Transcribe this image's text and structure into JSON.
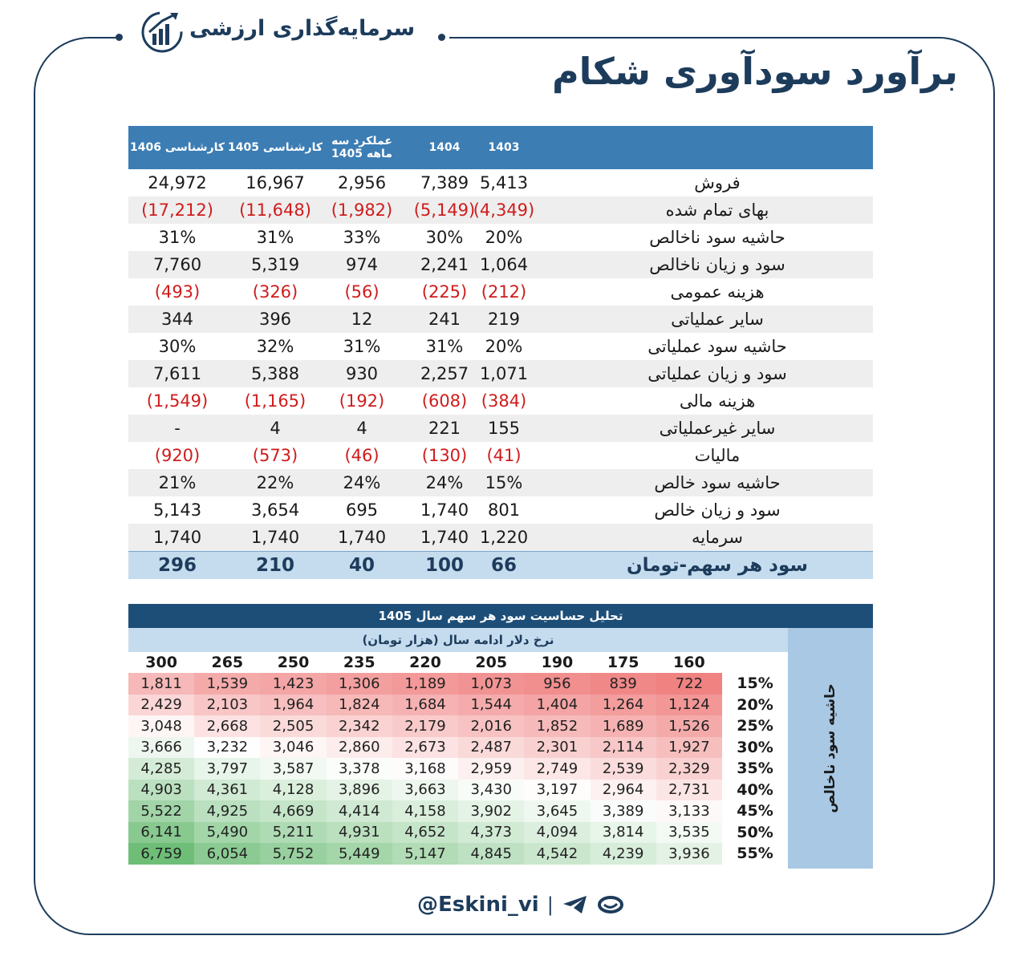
{
  "brand": {
    "name": "سرمایه‌گذاری ارزشی",
    "logo_icon": "chart-growth-logo-icon"
  },
  "title": "برآورد سودآوری شکام",
  "table": {
    "headers": [
      "1403",
      "1404",
      "عملکرد سه ماهه 1405",
      "کارشناسی 1405",
      "کارشناسی 1406"
    ],
    "rows": [
      {
        "label": "فروش",
        "values": [
          "5,413",
          "7,389",
          "2,956",
          "16,967",
          "24,972"
        ],
        "neg": false
      },
      {
        "label": "بهای تمام شده",
        "values": [
          "(4,349)",
          "(5,149)",
          "(1,982)",
          "(11,648)",
          "(17,212)"
        ],
        "neg": true
      },
      {
        "label": "حاشیه سود ناخالص",
        "values": [
          "20%",
          "30%",
          "33%",
          "31%",
          "31%"
        ],
        "neg": false
      },
      {
        "label": "سود و زیان ناخالص",
        "values": [
          "1,064",
          "2,241",
          "974",
          "5,319",
          "7,760"
        ],
        "neg": false
      },
      {
        "label": "هزینه عمومی",
        "values": [
          "(212)",
          "(225)",
          "(56)",
          "(326)",
          "(493)"
        ],
        "neg": true
      },
      {
        "label": "سایر  عملیاتی",
        "values": [
          "219",
          "241",
          "12",
          "396",
          "344"
        ],
        "neg": false
      },
      {
        "label": "حاشیه سود عملیاتی",
        "values": [
          "20%",
          "31%",
          "31%",
          "32%",
          "30%"
        ],
        "neg": false
      },
      {
        "label": "سود و زیان عملیاتی",
        "values": [
          "1,071",
          "2,257",
          "930",
          "5,388",
          "7,611"
        ],
        "neg": false
      },
      {
        "label": "هزینه مالی",
        "values": [
          "(384)",
          "(608)",
          "(192)",
          "(1,165)",
          "(1,549)"
        ],
        "neg": true
      },
      {
        "label": "سایر غیرعملیاتی",
        "values": [
          "155",
          "221",
          "4",
          "4",
          "-"
        ],
        "neg": false
      },
      {
        "label": "مالیات",
        "values": [
          "(41)",
          "(130)",
          "(46)",
          "(573)",
          "(920)"
        ],
        "neg": true
      },
      {
        "label": "حاشیه سود خالص",
        "values": [
          "15%",
          "24%",
          "24%",
          "22%",
          "21%"
        ],
        "neg": false
      },
      {
        "label": "سود و زیان خالص",
        "values": [
          "801",
          "1,740",
          "695",
          "3,654",
          "5,143"
        ],
        "neg": false
      },
      {
        "label": "سرمایه",
        "values": [
          "1,220",
          "1,740",
          "1,740",
          "1,740",
          "1,740"
        ],
        "neg": false
      }
    ],
    "eps": {
      "label": "سود هر سهم-تومان",
      "values": [
        "66",
        "100",
        "40",
        "210",
        "296"
      ]
    }
  },
  "sensitivity": {
    "title": "تحلیل حساسیت سود هر سهم سال 1405",
    "col_axis_label": "نرخ دلار ادامه سال (هزار تومان)",
    "row_axis_label": "حاشیه سود ناخالص",
    "cols": [
      "160",
      "175",
      "190",
      "205",
      "220",
      "235",
      "250",
      "265",
      "300"
    ],
    "rows": [
      "15%",
      "20%",
      "25%",
      "30%",
      "35%",
      "40%",
      "45%",
      "50%",
      "55%"
    ],
    "values": [
      [
        "722",
        "839",
        "956",
        "1,073",
        "1,189",
        "1,306",
        "1,423",
        "1,539",
        "1,811"
      ],
      [
        "1,124",
        "1,264",
        "1,404",
        "1,544",
        "1,684",
        "1,824",
        "1,964",
        "2,103",
        "2,429"
      ],
      [
        "1,526",
        "1,689",
        "1,852",
        "2,016",
        "2,179",
        "2,342",
        "2,505",
        "2,668",
        "3,048"
      ],
      [
        "1,927",
        "2,114",
        "2,301",
        "2,487",
        "2,673",
        "2,860",
        "3,046",
        "3,232",
        "3,666"
      ],
      [
        "2,329",
        "2,539",
        "2,749",
        "2,959",
        "3,168",
        "3,378",
        "3,587",
        "3,797",
        "4,285"
      ],
      [
        "2,731",
        "2,964",
        "3,197",
        "3,430",
        "3,663",
        "3,896",
        "4,128",
        "4,361",
        "4,903"
      ],
      [
        "3,133",
        "3,389",
        "3,645",
        "3,902",
        "4,158",
        "4,414",
        "4,669",
        "4,925",
        "5,522"
      ],
      [
        "3,535",
        "3,814",
        "4,094",
        "4,373",
        "4,652",
        "4,931",
        "5,211",
        "5,490",
        "6,141"
      ],
      [
        "3,936",
        "4,239",
        "4,542",
        "4,845",
        "5,147",
        "5,449",
        "5,752",
        "6,054",
        "6,759"
      ]
    ]
  },
  "footer": {
    "handle": "@Eskini_vi",
    "icons": [
      "telegram-icon",
      "eitaa-icon"
    ]
  },
  "colors": {
    "navy": "#1d3c5c",
    "header_blue": "#3c7db4",
    "negative": "#d01c1c",
    "eps_bg": "#c5dcee"
  }
}
